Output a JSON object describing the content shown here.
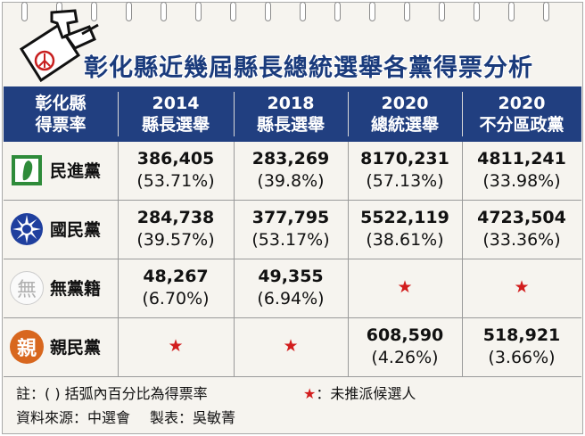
{
  "title": "彰化縣近幾屆縣長總統選舉各黨得票分析",
  "header": {
    "party_col": [
      "彰化縣",
      "得票率"
    ],
    "columns": [
      {
        "line1": "2014",
        "line2": "縣長選舉"
      },
      {
        "line1": "2018",
        "line2": "縣長選舉"
      },
      {
        "line1": "2020",
        "line2": "總統選舉"
      },
      {
        "line1": "2020",
        "line2": "不分區政黨"
      }
    ]
  },
  "rows": [
    {
      "party": "民進黨",
      "logo": "taiwan-map-icon",
      "cells": [
        {
          "num": "386,405",
          "pct": "(53.71%)"
        },
        {
          "num": "283,269",
          "pct": "(39.8%)"
        },
        {
          "num": "8170,231",
          "pct": "(57.13%)"
        },
        {
          "num": "4811,241",
          "pct": "(33.98%)"
        }
      ]
    },
    {
      "party": "國民黨",
      "logo": "sun-emblem-icon",
      "cells": [
        {
          "num": "284,738",
          "pct": "(39.57%)"
        },
        {
          "num": "377,795",
          "pct": "(53.17%)"
        },
        {
          "num": "5522,119",
          "pct": "(38.61%)"
        },
        {
          "num": "4723,504",
          "pct": "(33.36%)"
        }
      ]
    },
    {
      "party": "無黨籍",
      "logo": "wu-character-icon",
      "logo_text": "無",
      "cells": [
        {
          "num": "48,267",
          "pct": "(6.70%)"
        },
        {
          "num": "49,355",
          "pct": "(6.94%)"
        },
        {
          "star": "★"
        },
        {
          "star": "★"
        }
      ]
    },
    {
      "party": "親民黨",
      "logo": "qin-character-icon",
      "logo_text": "親",
      "cells": [
        {
          "star": "★"
        },
        {
          "star": "★"
        },
        {
          "num": "608,590",
          "pct": "(4.26%)"
        },
        {
          "num": "518,921",
          "pct": "(3.66%)"
        }
      ]
    }
  ],
  "footer": {
    "note": "註：(   ) 括弧內百分比為得票率",
    "star_symbol": "★",
    "star_note": "：未推派候選人",
    "source": "資料來源：中選會",
    "maker": "製表：吳敏菁"
  },
  "colors": {
    "header_bg": "#213f80",
    "title": "#1a3b7c",
    "star": "#d21d1d",
    "dpp_green": "#2e8b3a",
    "kmt_blue": "#1f3f9e",
    "pfp_orange": "#d8671e"
  }
}
